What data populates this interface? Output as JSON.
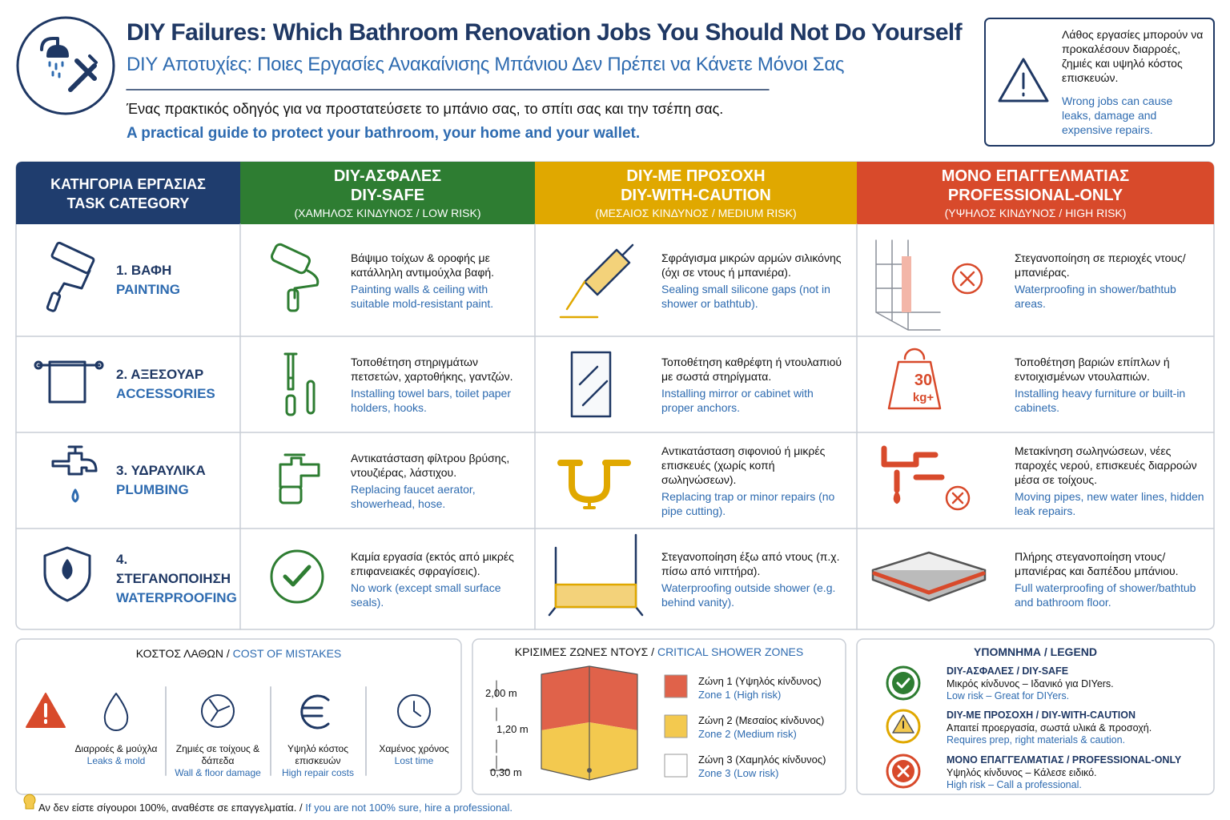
{
  "header": {
    "title_en": "DIY Failures: Which Bathroom Renovation Jobs You Should Not Do Yourself",
    "title_el": "DIY Αποτυχίες: Ποιες Εργασίες Ανακαίνισης Μπάνιου Δεν Πρέπει να Κάνετε Μόνοι Σας",
    "subtitle_el": "Ένας πρακτικός οδηγός για να προστατεύσετε το μπάνιο σας, το σπίτι σας και την τσέπη σας.",
    "subtitle_en": "A practical guide to protect your bathroom, your home and your wallet."
  },
  "warning": {
    "el": "Λάθος εργασίες μπορούν να προκαλέσουν διαρροές, ζημιές και υψηλό κόστος επισκευών.",
    "en": "Wrong jobs can cause leaks, damage and expensive repairs."
  },
  "table": {
    "headers": [
      {
        "el": "ΚΑΤΗΓΟΡΙΑ ΕΡΓΑΣΙΑΣ",
        "en": "TASK CATEGORY"
      },
      {
        "el": "DIY-ΑΣΦΑΛΕΣ",
        "en": "DIY-SAFE",
        "risk": "(ΧΑΜΗΛΟΣ ΚΙΝΔΥΝΟΣ / LOW RISK)"
      },
      {
        "el": "DIY-ΜΕ ΠΡΟΣΟΧΗ",
        "en": "DIY-WITH-CAUTION",
        "risk": "(ΜΕΣΑΙΟΣ ΚΙΝΔΥΝΟΣ / MEDIUM RISK)"
      },
      {
        "el": "ΜΟΝΟ ΕΠΑΓΓΕΛΜΑΤΙΑΣ",
        "en": "PROFESSIONAL-ONLY",
        "risk": "(ΥΨΗΛΟΣ ΚΙΝΔΥΝΟΣ / HIGH RISK)"
      }
    ],
    "rows": [
      {
        "el": "1. ΒΑΦΗ",
        "en": "PAINTING",
        "cells": [
          {
            "el": "Βάψιμο τοίχων & οροφής με κατάλληλη αντιμούχλα βαφή.",
            "en": "Painting walls & ceiling with suitable mold-resistant paint."
          },
          {
            "el": "Σφράγισμα μικρών αρμών σιλικόνης (όχι σε ντους ή μπανιέρα).",
            "en": "Sealing small silicone gaps (not in shower or bathtub)."
          },
          {
            "el": "Στεγανοποίηση σε περιοχές ντους/μπανιέρας.",
            "en": "Waterproofing in shower/bathtub areas."
          }
        ]
      },
      {
        "el": "2. ΑΞΕΣΟΥΑΡ",
        "en": "ACCESSORIES",
        "cells": [
          {
            "el": "Τοποθέτηση στηριγμάτων πετσετών, χαρτοθήκης, γαντζών.",
            "en": "Installing towel bars, toilet paper holders, hooks."
          },
          {
            "el": "Τοποθέτηση καθρέφτη ή ντουλαπιού με σωστά στηρίγματα.",
            "en": "Installing mirror or cabinet with proper anchors."
          },
          {
            "el": "Τοποθέτηση βαριών επίπλων ή εντοιχισμένων ντουλαπιών.",
            "en": "Installing heavy furniture or built-in cabinets.",
            "icon_value": "30",
            "icon_unit": "kg+"
          }
        ]
      },
      {
        "el": "3. ΥΔΡΑΥΛΙΚΑ",
        "en": "PLUMBING",
        "cells": [
          {
            "el": "Αντικατάσταση φίλτρου βρύσης, ντουζιέρας, λάστιχου.",
            "en": "Replacing faucet aerator, showerhead, hose."
          },
          {
            "el": "Αντικατάσταση σιφονιού ή μικρές επισκευές (χωρίς κοπή σωληνώσεων).",
            "en": "Replacing trap or minor repairs (no pipe cutting)."
          },
          {
            "el": "Μετακίνηση σωληνώσεων, νέες παροχές νερού, επισκευές διαρροών μέσα σε τοίχους.",
            "en": "Moving pipes, new water lines, hidden leak repairs."
          }
        ]
      },
      {
        "el": "4. ΣΤΕΓΑΝΟΠΟΙΗΣΗ",
        "en": "WATERPROOFING",
        "cells": [
          {
            "el": "Καμία εργασία (εκτός από μικρές επιφανειακές σφραγίσεις).",
            "en": "No work (except small surface seals)."
          },
          {
            "el": "Στεγανοποίηση έξω από ντους (π.χ. πίσω από νιπτήρα).",
            "en": "Waterproofing outside shower (e.g. behind vanity)."
          },
          {
            "el": "Πλήρης στεγανοποίηση ντους/μπανιέρας και δαπέδου μπάνιου.",
            "en": "Full waterproofing of shower/bathtub and bathroom floor."
          }
        ]
      }
    ]
  },
  "cost": {
    "title_el": "ΚΟΣΤΟΣ ΛΑΘΩΝ /",
    "title_en": "COST OF MISTAKES",
    "items": [
      {
        "el": "Διαρροές & μούχλα",
        "en": "Leaks & mold"
      },
      {
        "el": "Ζημιές σε τοίχους & δάπεδα",
        "en": "Wall & floor damage"
      },
      {
        "el": "Υψηλό κόστος επισκευών",
        "en": "High repair costs"
      },
      {
        "el": "Χαμένος χρόνος",
        "en": "Lost time"
      }
    ]
  },
  "zones": {
    "title_el": "ΚΡΙΣΙΜΕΣ ΖΩΝΕΣ ΝΤΟΥΣ /",
    "title_en": "CRITICAL SHOWER ZONES",
    "heights": [
      "2,00 m",
      "1,20 m",
      "0,30 m"
    ],
    "items": [
      {
        "el": "Ζώνη 1 (Υψηλός κίνδυνος)",
        "en": "Zone 1 (High risk)"
      },
      {
        "el": "Ζώνη 2 (Μεσαίος κίνδυνος)",
        "en": "Zone 2 (Medium risk)"
      },
      {
        "el": "Ζώνη 3 (Χαμηλός κίνδυνος)",
        "en": "Zone 3 (Low risk)"
      }
    ]
  },
  "legend": {
    "title": "ΥΠΟΜΝΗΜΑ / LEGEND",
    "items": [
      {
        "name": "DIY-ΑΣΦΑΛΕΣ / DIY-SAFE",
        "el": "Μικρός κίνδυνος – Ιδανικό για DIYers.",
        "en": "Low risk – Great for DIYers."
      },
      {
        "name": "DIY-ΜΕ ΠΡΟΣΟΧΗ / DIY-WITH-CAUTION",
        "el": "Απαιτεί προεργασία, σωστά υλικά & προσοχή.",
        "en": "Requires prep, right materials & caution."
      },
      {
        "name": "ΜΟΝΟ ΕΠΑΓΓΕΛΜΑΤΙΑΣ / PROFESSIONAL-ONLY",
        "el": "Υψηλός κίνδυνος – Κάλεσε ειδικό.",
        "en": "High risk – Call a professional."
      }
    ]
  },
  "footer": {
    "el": "Αν δεν είστε σίγουροι 100%, αναθέστε σε επαγγελματία. /",
    "en": "If you are not 100% sure, hire a professional."
  }
}
